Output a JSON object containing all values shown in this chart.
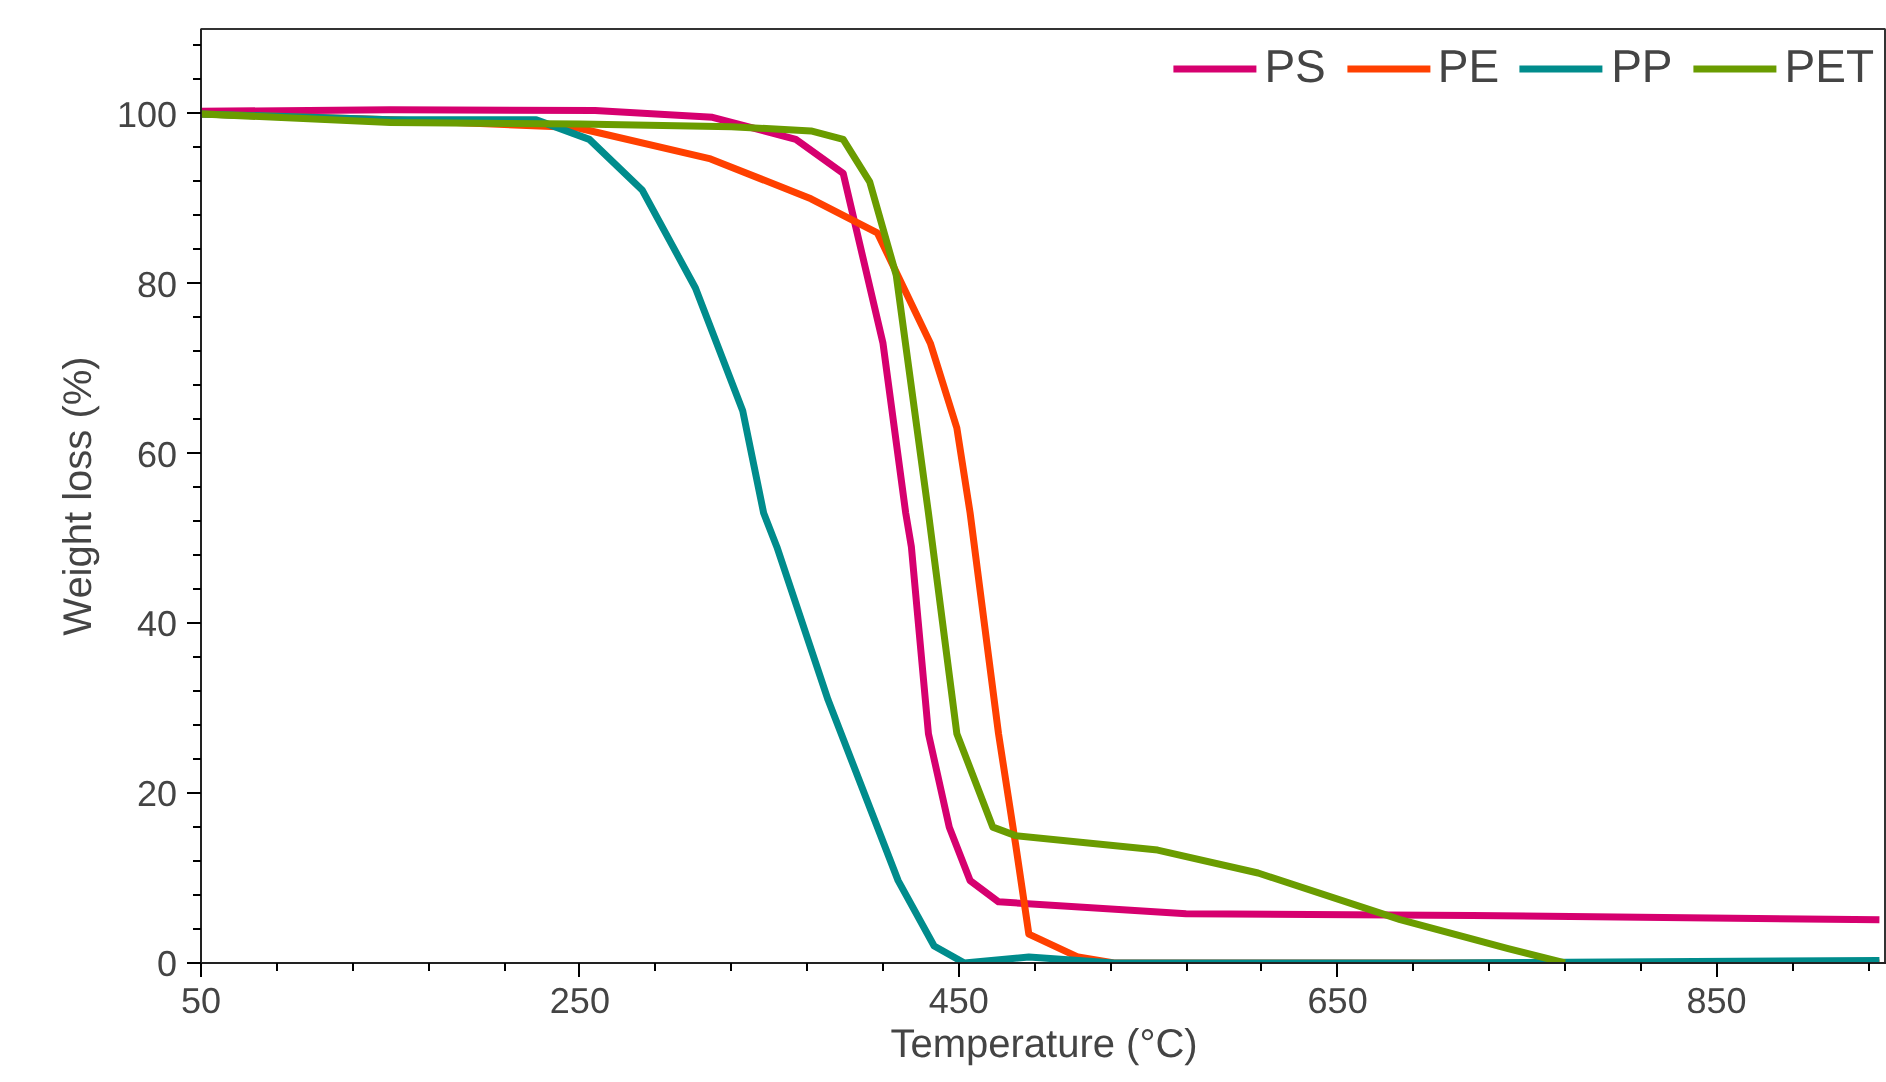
{
  "chart_data": {
    "type": "line",
    "xlabel": "Temperature (°C)",
    "ylabel": "Weight loss (%)",
    "xlim": [
      50,
      940
    ],
    "ylim": [
      0,
      110
    ],
    "xticks": [
      50,
      250,
      450,
      650,
      850
    ],
    "yticks": [
      0,
      20,
      40,
      60,
      80,
      100
    ],
    "grid": false,
    "legend": "top right",
    "marker": "none",
    "line_style": "solid",
    "series": [
      {
        "name": "PS",
        "color": "#d6006f",
        "x": [
          50,
          150,
          258,
          320,
          364,
          389,
          410,
          422,
          425,
          434,
          445,
          456,
          471,
          570,
          721,
          936
        ],
        "values": [
          100.3,
          100.5,
          100.4,
          99.6,
          97,
          93,
          73,
          53,
          49,
          27,
          16,
          9.7,
          7.2,
          5.8,
          5.6,
          5.1
        ]
      },
      {
        "name": "PE",
        "color": "#ff4000",
        "x": [
          50,
          150,
          248,
          319,
          372,
          407,
          435,
          449,
          456,
          471,
          480,
          487,
          513,
          532,
          936
        ],
        "values": [
          100,
          99.3,
          98.4,
          94.7,
          90,
          86,
          73,
          63,
          53,
          27,
          14,
          3.4,
          0.7,
          0,
          0
        ]
      },
      {
        "name": "PP",
        "color": "#008c8c",
        "x": [
          50,
          150,
          227,
          255,
          283,
          311,
          336,
          347,
          354,
          381,
          418,
          437,
          453,
          487,
          532,
          700,
          936
        ],
        "values": [
          100,
          99.3,
          99.3,
          97,
          91,
          79.5,
          65,
          53,
          49,
          31,
          9.7,
          2,
          0,
          0.7,
          0,
          0,
          0.3
        ]
      },
      {
        "name": "PET",
        "color": "#6a9c00",
        "x": [
          50,
          150,
          250,
          330,
          372,
          389,
          403,
          417,
          434,
          449,
          468,
          480,
          555,
          608,
          683,
          740,
          770
        ],
        "values": [
          100,
          99,
          98.8,
          98.5,
          98,
          97,
          92,
          81,
          53,
          27,
          16,
          15,
          13.3,
          10.6,
          5.1,
          1.7,
          0
        ]
      }
    ]
  }
}
